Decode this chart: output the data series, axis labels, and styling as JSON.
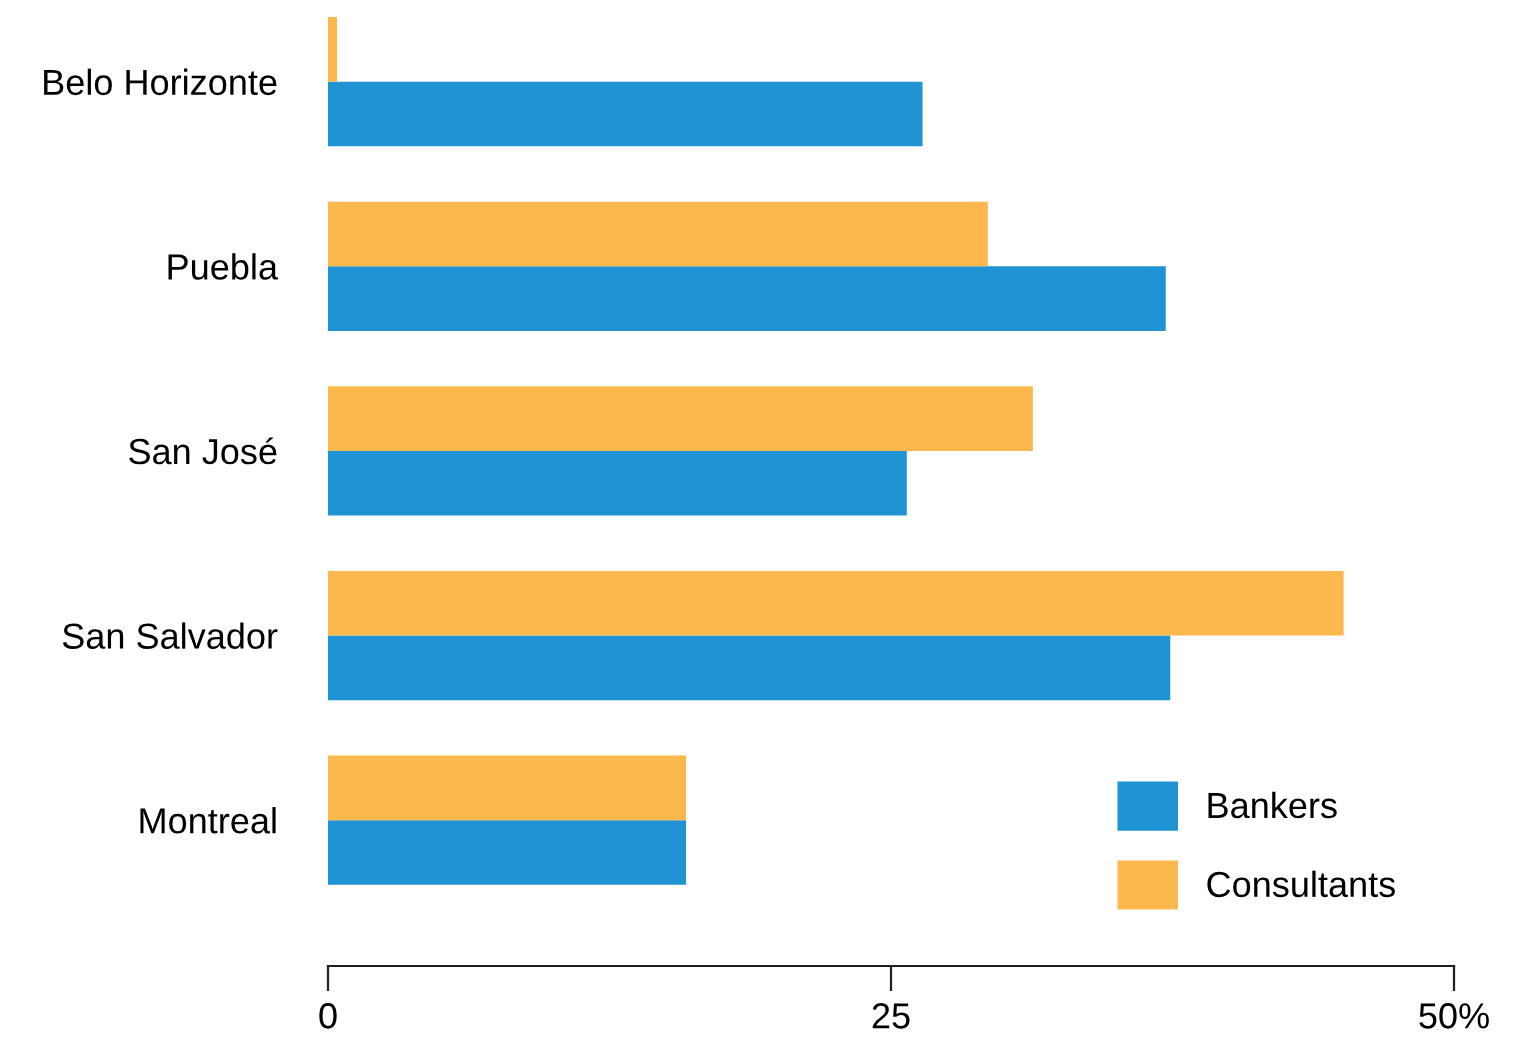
{
  "chart_data": {
    "type": "bar",
    "orientation": "horizontal",
    "categories": [
      "Belo Horizonte",
      "Puebla",
      "San José",
      "San Salvador",
      "Montreal"
    ],
    "series": [
      {
        "name": "Bankers",
        "color": "#1f93d3",
        "values": [
          26.4,
          37.2,
          25.7,
          37.4,
          15.9
        ]
      },
      {
        "name": "Consultants",
        "color": "#fbb84d",
        "values": [
          0.4,
          29.3,
          31.3,
          45.1,
          15.9
        ]
      }
    ],
    "xlim": [
      0,
      50
    ],
    "xticks": [
      0,
      25,
      {
        "value": 50,
        "label": "50%"
      }
    ],
    "grid": false,
    "legend": "bottom right"
  }
}
